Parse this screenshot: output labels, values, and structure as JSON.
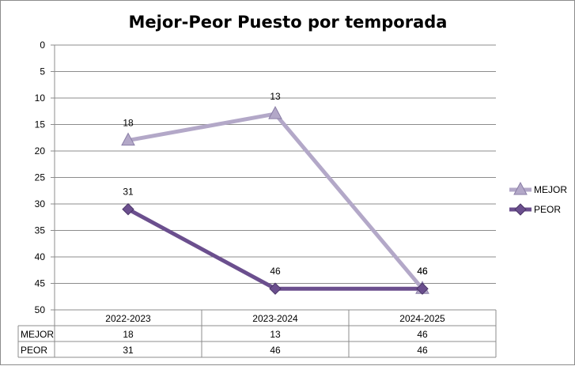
{
  "chart_data": {
    "type": "line",
    "title": "Mejor-Peor Puesto por temporada",
    "categories": [
      "2022-2023",
      "2023-2024",
      "2024-2025"
    ],
    "yticks": [
      0,
      5,
      10,
      15,
      20,
      25,
      30,
      35,
      40,
      45,
      50
    ],
    "ylim": [
      0,
      50
    ],
    "y_inverted": true,
    "grid": true,
    "legend": "right",
    "data_table": true,
    "series": [
      {
        "name": "MEJOR",
        "values": [
          18,
          13,
          46
        ],
        "labels": [
          "18",
          "13",
          "46"
        ],
        "color": "#b3a8c8",
        "marker": "triangle"
      },
      {
        "name": "PEOR",
        "values": [
          31,
          46,
          46
        ],
        "labels": [
          "31",
          "46",
          "46"
        ],
        "color": "#6b4f8e",
        "marker": "diamond"
      }
    ]
  }
}
